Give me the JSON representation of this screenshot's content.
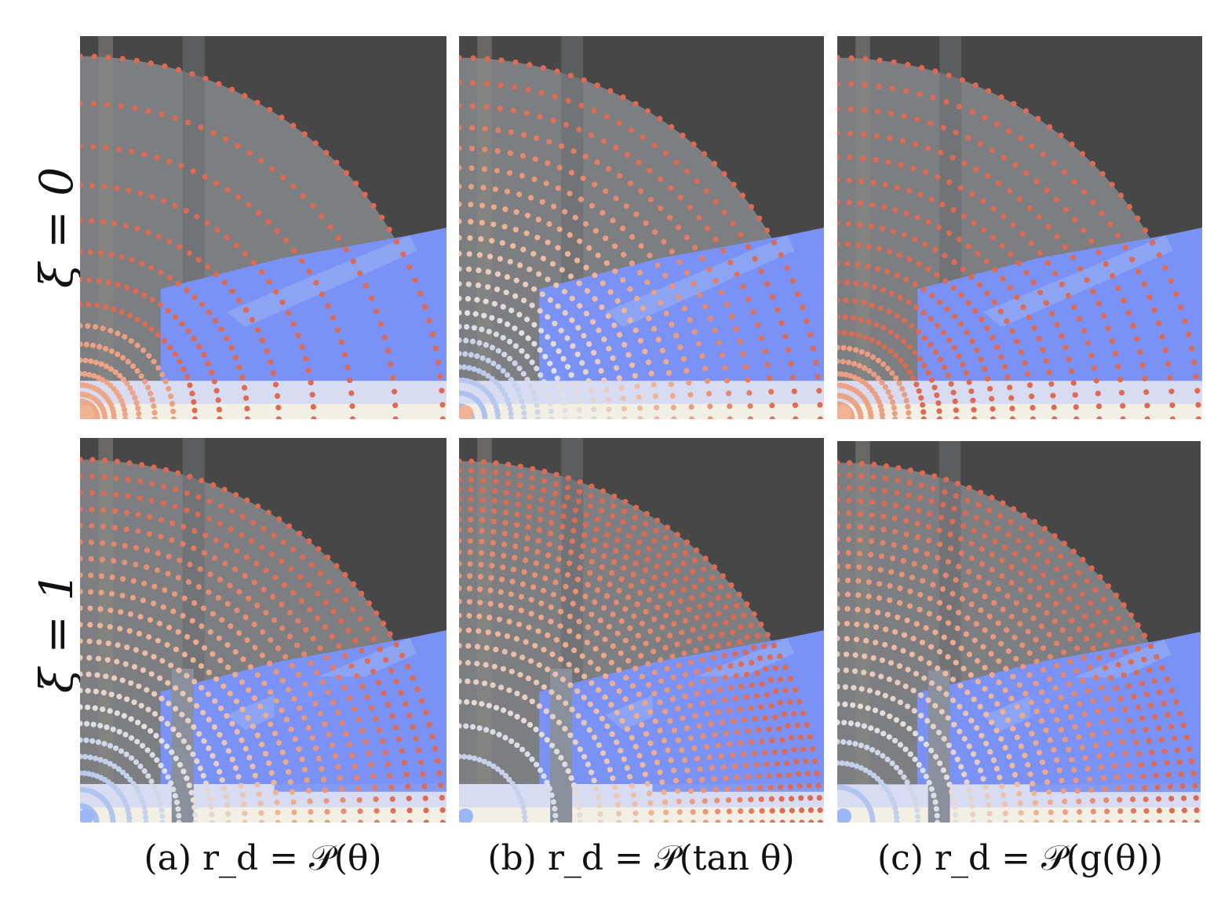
{
  "row_labels": [
    "ξ = 0",
    "ξ = 1"
  ],
  "captions": [
    "(a) r_d = 𝒫(θ)",
    "(b) r_d = 𝒫(tan θ)",
    "(c) r_d = 𝒫(g(θ))"
  ],
  "colors": {
    "background_dark": "#474747",
    "blue_region": "#7a92f5",
    "sky_light": "#f2f0e4",
    "ray_red": "#dd6a52",
    "ray_peach": "#f0b394",
    "ray_white": "#e2e2e2",
    "ray_blue": "#9cb7f6",
    "ray_dark": "#3a3a3a"
  },
  "panels": [
    {
      "id": "a-xi0",
      "mapping": "θ",
      "xi": 0
    },
    {
      "id": "b-xi0",
      "mapping": "tan θ",
      "xi": 0
    },
    {
      "id": "c-xi0",
      "mapping": "g(θ)",
      "xi": 0
    },
    {
      "id": "a-xi1",
      "mapping": "θ",
      "xi": 1
    },
    {
      "id": "b-xi1",
      "mapping": "tan θ",
      "xi": 1
    },
    {
      "id": "c-xi1",
      "mapping": "g(θ)",
      "xi": 1
    }
  ]
}
